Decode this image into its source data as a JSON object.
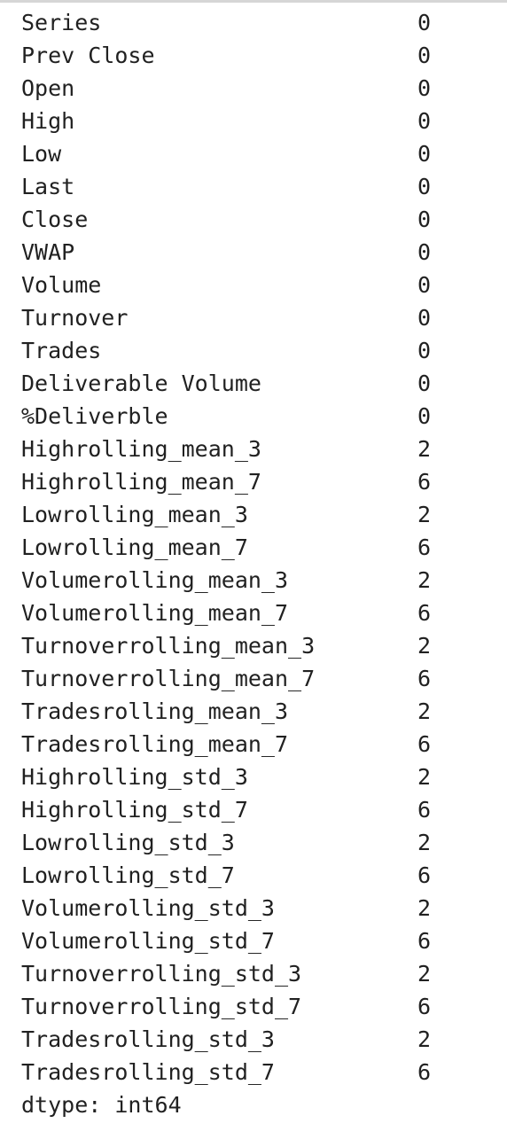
{
  "output": {
    "rows": [
      {
        "name": "Series",
        "value": "0"
      },
      {
        "name": "Prev Close",
        "value": "0"
      },
      {
        "name": "Open",
        "value": "0"
      },
      {
        "name": "High",
        "value": "0"
      },
      {
        "name": "Low",
        "value": "0"
      },
      {
        "name": "Last",
        "value": "0"
      },
      {
        "name": "Close",
        "value": "0"
      },
      {
        "name": "VWAP",
        "value": "0"
      },
      {
        "name": "Volume",
        "value": "0"
      },
      {
        "name": "Turnover",
        "value": "0"
      },
      {
        "name": "Trades",
        "value": "0"
      },
      {
        "name": "Deliverable Volume",
        "value": "0"
      },
      {
        "name": "%Deliverble",
        "value": "0"
      },
      {
        "name": "Highrolling_mean_3",
        "value": "2"
      },
      {
        "name": "Highrolling_mean_7",
        "value": "6"
      },
      {
        "name": "Lowrolling_mean_3",
        "value": "2"
      },
      {
        "name": "Lowrolling_mean_7",
        "value": "6"
      },
      {
        "name": "Volumerolling_mean_3",
        "value": "2"
      },
      {
        "name": "Volumerolling_mean_7",
        "value": "6"
      },
      {
        "name": "Turnoverrolling_mean_3",
        "value": "2"
      },
      {
        "name": "Turnoverrolling_mean_7",
        "value": "6"
      },
      {
        "name": "Tradesrolling_mean_3",
        "value": "2"
      },
      {
        "name": "Tradesrolling_mean_7",
        "value": "6"
      },
      {
        "name": "Highrolling_std_3",
        "value": "2"
      },
      {
        "name": "Highrolling_std_7",
        "value": "6"
      },
      {
        "name": "Lowrolling_std_3",
        "value": "2"
      },
      {
        "name": "Lowrolling_std_7",
        "value": "6"
      },
      {
        "name": "Volumerolling_std_3",
        "value": "2"
      },
      {
        "name": "Volumerolling_std_7",
        "value": "6"
      },
      {
        "name": "Turnoverrolling_std_3",
        "value": "2"
      },
      {
        "name": "Turnoverrolling_std_7",
        "value": "6"
      },
      {
        "name": "Tradesrolling_std_3",
        "value": "2"
      },
      {
        "name": "Tradesrolling_std_7",
        "value": "6"
      }
    ],
    "dtype_line": "dtype: int64"
  }
}
